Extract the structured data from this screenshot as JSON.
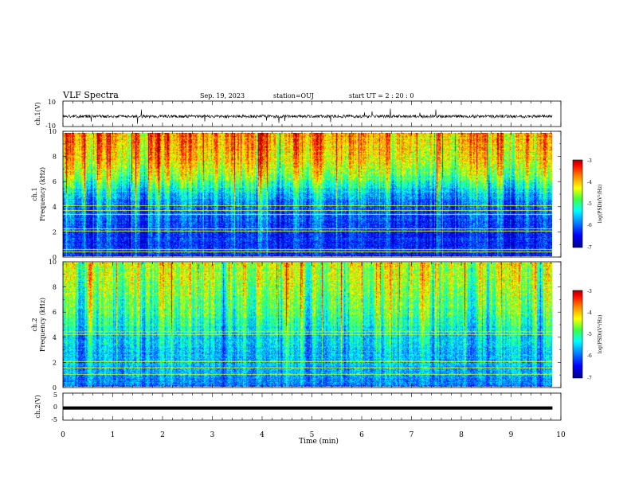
{
  "header": {
    "title": "VLF Spectra",
    "date": "Sep. 19, 2023",
    "station": "station=OUJ",
    "start": "start UT =  2 : 20 : 0"
  },
  "chart_data": [
    {
      "type": "line",
      "id": "ch1-waveform",
      "ylabel": "ch.1(V)",
      "ylim": [
        -10,
        10
      ],
      "yticks": [
        "10",
        "-10"
      ],
      "xlim": [
        0,
        10
      ],
      "data_extent_min": 9.83,
      "baseline": -2,
      "noise_amplitude": 1.2,
      "spike_amplitude": 6
    },
    {
      "type": "heatmap",
      "id": "ch1-spectrogram",
      "ylabel": "ch.1\nFrequency (kHz)",
      "ylabel_lines": [
        "ch.1",
        "Frequency (kHz)"
      ],
      "ylim": [
        0,
        10
      ],
      "yticks": [
        "0",
        "2",
        "4",
        "6",
        "8",
        "10"
      ],
      "xlim": [
        0,
        10
      ],
      "data_extent_min": 9.83,
      "colorbar": {
        "label": "log(PSD)(V²/Hz)",
        "range": [
          -7,
          -3
        ],
        "ticks": [
          "-3",
          "-4",
          "-5",
          "-6",
          "-7"
        ]
      },
      "approx_log_psd_profile": [
        {
          "freq_khz": 0.0,
          "log_psd": -6.3
        },
        {
          "freq_khz": 2.0,
          "log_psd": -6.2
        },
        {
          "freq_khz": 4.0,
          "log_psd": -6.0
        },
        {
          "freq_khz": 5.5,
          "log_psd": -5.3
        },
        {
          "freq_khz": 6.5,
          "log_psd": -4.6
        },
        {
          "freq_khz": 8.0,
          "log_psd": -4.1
        },
        {
          "freq_khz": 10.0,
          "log_psd": -3.8
        }
      ],
      "horizontal_lines_khz": [
        0.3,
        0.5,
        2.0,
        2.2,
        3.4,
        3.7,
        4.1
      ]
    },
    {
      "type": "heatmap",
      "id": "ch2-spectrogram",
      "ylabel": "ch.2\nFrequency (kHz)",
      "ylabel_lines": [
        "ch.2",
        "Frequency (kHz)"
      ],
      "ylim": [
        0,
        10
      ],
      "yticks": [
        "0",
        "2",
        "4",
        "6",
        "8",
        "10"
      ],
      "xlim": [
        0,
        10
      ],
      "data_extent_min": 9.83,
      "colorbar": {
        "label": "log(PSD)(V²/Hz)",
        "range": [
          -7,
          -3
        ],
        "ticks": [
          "-3",
          "-4",
          "-5",
          "-6",
          "-7"
        ]
      },
      "approx_log_psd_profile": [
        {
          "freq_khz": 0.0,
          "log_psd": -5.9
        },
        {
          "freq_khz": 2.0,
          "log_psd": -5.6
        },
        {
          "freq_khz": 4.0,
          "log_psd": -5.5
        },
        {
          "freq_khz": 5.0,
          "log_psd": -5.1
        },
        {
          "freq_khz": 6.5,
          "log_psd": -4.8
        },
        {
          "freq_khz": 8.0,
          "log_psd": -4.6
        },
        {
          "freq_khz": 10.0,
          "log_psd": -4.4
        }
      ],
      "horizontal_lines_khz": [
        1.0,
        1.5,
        2.0,
        4.2,
        4.4
      ]
    },
    {
      "type": "line",
      "id": "ch2-waveform",
      "ylabel": "ch.2(V)",
      "ylim": [
        -5,
        5
      ],
      "yticks": [
        "5",
        "0",
        "-5"
      ],
      "xlim": [
        0,
        10
      ],
      "data_extent_min": 9.83,
      "constant_value": -0.5
    }
  ],
  "xaxis": {
    "label": "Time (min)",
    "ticks": [
      "0",
      "1",
      "2",
      "3",
      "4",
      "5",
      "6",
      "7",
      "8",
      "9",
      "10"
    ],
    "range": [
      0,
      10
    ]
  }
}
